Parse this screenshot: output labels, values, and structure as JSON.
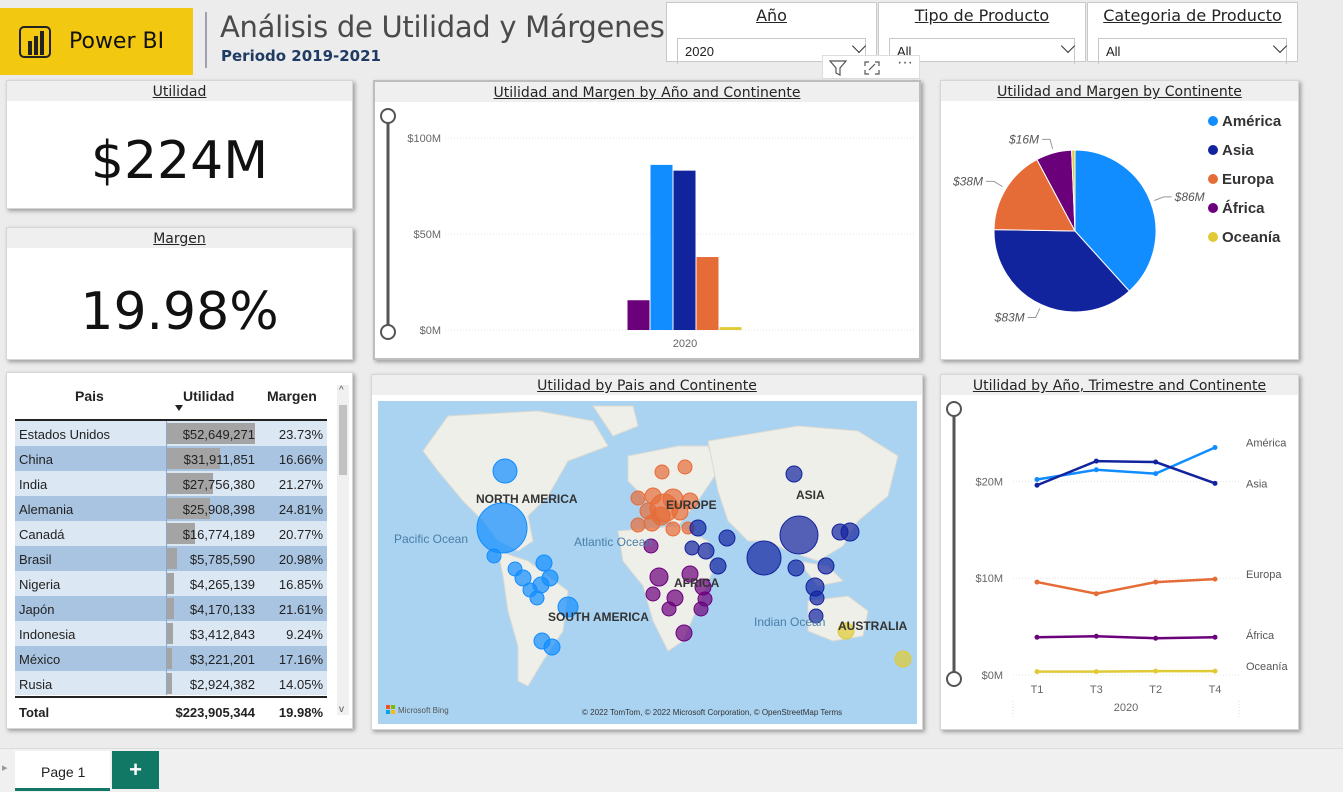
{
  "header": {
    "logo_text": "Power BI",
    "title": "Análisis de Utilidad y Márgenes",
    "subtitle": "Periodo 2019-2021"
  },
  "slicers": [
    {
      "label": "Año",
      "value": "2020"
    },
    {
      "label": "Tipo de Producto",
      "value": "All"
    },
    {
      "label": "Categoria de Producto",
      "value": "All"
    }
  ],
  "colors": {
    "america": "#118DFF",
    "asia": "#12239E",
    "europa": "#E66C37",
    "africa": "#6B007B",
    "oceania": "#E0CA35",
    "accent": "#F2C811"
  },
  "kpis": {
    "utilidad": {
      "title": "Utilidad",
      "value": "$224M"
    },
    "margen": {
      "title": "Margen",
      "value": "19.98%"
    }
  },
  "table": {
    "headers": [
      "Pais",
      "Utilidad",
      "Margen"
    ],
    "rows": [
      {
        "pais": "Estados Unidos",
        "utilidad": "$52,649,271",
        "margen": "23.73%",
        "bar": 52649271
      },
      {
        "pais": "China",
        "utilidad": "$31,911,851",
        "margen": "16.66%",
        "bar": 31911851
      },
      {
        "pais": "India",
        "utilidad": "$27,756,380",
        "margen": "21.27%",
        "bar": 27756380
      },
      {
        "pais": "Alemania",
        "utilidad": "$25,908,398",
        "margen": "24.81%",
        "bar": 25908398
      },
      {
        "pais": "Canadá",
        "utilidad": "$16,774,189",
        "margen": "20.77%",
        "bar": 16774189
      },
      {
        "pais": "Brasil",
        "utilidad": "$5,785,590",
        "margen": "20.98%",
        "bar": 5785590
      },
      {
        "pais": "Nigeria",
        "utilidad": "$4,265,139",
        "margen": "16.85%",
        "bar": 4265139
      },
      {
        "pais": "Japón",
        "utilidad": "$4,170,133",
        "margen": "21.61%",
        "bar": 4170133
      },
      {
        "pais": "Indonesia",
        "utilidad": "$3,412,843",
        "margen": "9.24%",
        "bar": 3412843
      },
      {
        "pais": "México",
        "utilidad": "$3,221,201",
        "margen": "17.16%",
        "bar": 3221201
      },
      {
        "pais": "Rusia",
        "utilidad": "$2,924,382",
        "margen": "14.05%",
        "bar": 2924382
      }
    ],
    "total": {
      "label": "Total",
      "utilidad": "$223,905,344",
      "margen": "19.98%"
    }
  },
  "chart_data": [
    {
      "type": "bar",
      "title": "Utilidad and Margen by Año and Continente",
      "categories": [
        "2020"
      ],
      "yticks": [
        "$0M",
        "$50M",
        "$100M"
      ],
      "ylim": [
        0,
        100
      ],
      "series": [
        {
          "name": "África",
          "values": [
            15.5
          ]
        },
        {
          "name": "América",
          "values": [
            86
          ]
        },
        {
          "name": "Asia",
          "values": [
            83
          ]
        },
        {
          "name": "Europa",
          "values": [
            38
          ]
        },
        {
          "name": "Oceanía",
          "values": [
            1.5
          ]
        }
      ]
    },
    {
      "type": "pie",
      "title": "Utilidad and Margen by Continente",
      "slices": [
        {
          "name": "América",
          "value": 86,
          "label": "$86M"
        },
        {
          "name": "Asia",
          "value": 83,
          "label": "$83M"
        },
        {
          "name": "Europa",
          "value": 38,
          "label": "$38M"
        },
        {
          "name": "África",
          "value": 16,
          "label": "$16M"
        },
        {
          "name": "Oceanía",
          "value": 1.5,
          "label": ""
        }
      ],
      "legend": [
        "América",
        "Asia",
        "Europa",
        "África",
        "Oceanía"
      ],
      "legend_position": "right"
    },
    {
      "type": "line",
      "title": "Utilidad by Año, Trimestre and Continente",
      "x": [
        "T1",
        "T3",
        "T2",
        "T4"
      ],
      "xgroup": "2020",
      "yticks": [
        "$0M",
        "$10M",
        "$20M"
      ],
      "ylim": [
        0,
        25
      ],
      "series": [
        {
          "name": "América",
          "values": [
            20.2,
            21.2,
            20.8,
            23.5
          ]
        },
        {
          "name": "Asia",
          "values": [
            19.6,
            22.1,
            22.0,
            19.8
          ]
        },
        {
          "name": "Europa",
          "values": [
            9.6,
            8.4,
            9.6,
            9.9
          ]
        },
        {
          "name": "África",
          "values": [
            3.9,
            4.0,
            3.8,
            3.9
          ]
        },
        {
          "name": "Oceanía",
          "values": [
            0.35,
            0.35,
            0.4,
            0.4
          ]
        }
      ]
    }
  ],
  "map": {
    "title": "Utilidad by Pais and Continente",
    "labels": {
      "north_america": "NORTH AMERICA",
      "south_america": "SOUTH AMERICA",
      "europe": "EUROPE",
      "africa": "AFRICA",
      "asia": "ASIA",
      "australia": "AUSTRALIA",
      "pacific": "Pacific Ocean",
      "atlantic": "Atlantic Ocean",
      "indian": "Indian Ocean"
    },
    "attribution": "© 2022 TomTom, © 2022 Microsoft Corporation, © OpenStreetMap  Terms",
    "bing": "Microsoft Bing"
  },
  "footer": {
    "page_tab": "Page 1",
    "add_label": "+"
  }
}
